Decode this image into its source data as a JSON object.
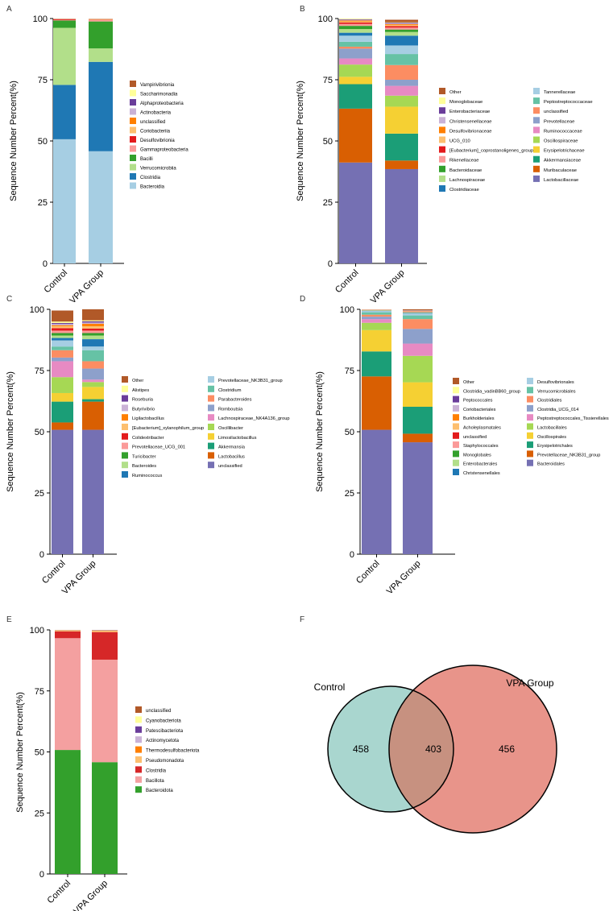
{
  "colors": {
    "Bacteroidia": "#a6cee3",
    "Clostridia": "#1f78b4",
    "Verrucomicrobiia": "#b2df8a",
    "Bacilli": "#33a02c",
    "Gammaproteobacteria": "#fb9a99",
    "Desulfovibrionia": "#e31a1c",
    "Coriobacteriia": "#fdbf6f",
    "unclassified": "#ff7f00",
    "Actinobacteria": "#cab2d6",
    "Alphaproteobacteria": "#6a3d9a",
    "Saccharimonadia": "#ffff99",
    "Vampirivibrionia": "#b15928"
  },
  "panel_labels": [
    "A",
    "B",
    "C",
    "D",
    "E",
    "F"
  ],
  "chart_data": [
    {
      "id": "A",
      "type": "bar",
      "stacked": true,
      "categories": [
        "Control",
        "VPA Group"
      ],
      "ylabel": "Sequence Number Percent(%)",
      "ylim": [
        0,
        100
      ],
      "yticks": [
        0,
        25,
        50,
        75,
        100
      ],
      "series": [
        {
          "name": "Bacteroidia",
          "color": "#a6cee3",
          "values": [
            50.7,
            45.8
          ]
        },
        {
          "name": "Clostridia",
          "color": "#1f78b4",
          "values": [
            22.2,
            36.5
          ]
        },
        {
          "name": "Verrucomicrobiia",
          "color": "#b2df8a",
          "values": [
            23.3,
            5.5
          ]
        },
        {
          "name": "Bacilli",
          "color": "#33a02c",
          "values": [
            3.0,
            11.0
          ]
        },
        {
          "name": "Gammaproteobacteria",
          "color": "#fb9a99",
          "values": [
            0.2,
            0.6
          ]
        },
        {
          "name": "Desulfovibrionia",
          "color": "#e31a1c",
          "values": [
            0.3,
            0.1
          ]
        },
        {
          "name": "Coriobacteriia",
          "color": "#fdbf6f",
          "values": [
            0.1,
            0.2
          ]
        },
        {
          "name": "unclassified",
          "color": "#ff7f00",
          "values": [
            0.1,
            0.1
          ]
        },
        {
          "name": "Actinobacteria",
          "color": "#cab2d6",
          "values": [
            0.05,
            0.1
          ]
        },
        {
          "name": "Alphaproteobacteria",
          "color": "#6a3d9a",
          "values": [
            0.05,
            0.05
          ]
        },
        {
          "name": "Saccharimonadia",
          "color": "#ffff99",
          "values": [
            0.05,
            0.05
          ]
        },
        {
          "name": "Vampirivibrionia",
          "color": "#b15928",
          "values": [
            0.1,
            0.05
          ]
        }
      ],
      "legend": {
        "columns": [
          [
            "Vampirivibrionia",
            "Saccharimonadia",
            "Alphaproteobacteria",
            "Actinobacteria",
            "unclassified",
            "Coriobacteriia",
            "Desulfovibrionia",
            "Gammaproteobacteria",
            "Bacilli",
            "Verrucomicrobiia",
            "Clostridia",
            "Bacteroidia"
          ]
        ]
      }
    },
    {
      "id": "B",
      "type": "bar",
      "stacked": true,
      "categories": [
        "Control",
        "VPA Group"
      ],
      "ylabel": "Sequence Number Percent(%)",
      "ylim": [
        0,
        100
      ],
      "yticks": [
        0,
        25,
        50,
        75,
        100
      ],
      "series": [
        {
          "name": "Lactobacillaceae",
          "color": "#7570b3",
          "values": [
            41.2,
            38.5
          ]
        },
        {
          "name": "Muribaculaceae",
          "color": "#d95f02",
          "values": [
            22.0,
            3.5
          ]
        },
        {
          "name": "Akkermansiaceae",
          "color": "#1b9e77",
          "values": [
            10.0,
            11.0
          ]
        },
        {
          "name": "Erysipelotrichaceae",
          "color": "#f5d033",
          "values": [
            3.0,
            11.0
          ]
        },
        {
          "name": "Oscillospiraceae",
          "color": "#a6d854",
          "values": [
            5.0,
            4.5
          ]
        },
        {
          "name": "Ruminococcaceae",
          "color": "#e78ac3",
          "values": [
            2.5,
            4.0
          ]
        },
        {
          "name": "Prevotellaceae",
          "color": "#8da0cb",
          "values": [
            4.0,
            2.5
          ]
        },
        {
          "name": "unclassified",
          "color": "#fc8d62",
          "values": [
            0.8,
            6.0
          ]
        },
        {
          "name": "Peptostreptococcaceae",
          "color": "#66c2a5",
          "values": [
            2.0,
            4.5
          ]
        },
        {
          "name": "Tannerellaceae",
          "color": "#a6cee3",
          "values": [
            2.5,
            3.5
          ]
        },
        {
          "name": "Clostridiaceae",
          "color": "#1f78b4",
          "values": [
            1.2,
            4.0
          ]
        },
        {
          "name": "Lachnospiraceae",
          "color": "#b2df8a",
          "values": [
            1.5,
            1.5
          ]
        },
        {
          "name": "Bacteroidaceae",
          "color": "#33a02c",
          "values": [
            1.3,
            1.0
          ]
        },
        {
          "name": "Rikenellaceae",
          "color": "#fb9a99",
          "values": [
            0.8,
            0.8
          ]
        },
        {
          "name": "[Eubacterium]_coprostanoligenes_group",
          "color": "#e31a1c",
          "values": [
            0.6,
            0.6
          ]
        },
        {
          "name": "UCG_010",
          "color": "#fdbf6f",
          "values": [
            0.4,
            0.5
          ]
        },
        {
          "name": "Desulfovibrionaceae",
          "color": "#ff7f00",
          "values": [
            0.4,
            0.3
          ]
        },
        {
          "name": "Christensenellaceae",
          "color": "#cab2d6",
          "values": [
            0.3,
            0.3
          ]
        },
        {
          "name": "Enterobacteriaceae",
          "color": "#6a3d9a",
          "values": [
            0.2,
            0.3
          ]
        },
        {
          "name": "Monoglobaceae",
          "color": "#ffff99",
          "values": [
            0.3,
            0.2
          ]
        },
        {
          "name": "Other",
          "color": "#b15928",
          "values": [
            2.0,
            1.0
          ]
        }
      ],
      "legend": {
        "columns": [
          [
            "Other",
            "Monoglobaceae",
            "Enterobacteriaceae",
            "Christensenellaceae",
            "Desulfovibrionaceae",
            "UCG_010",
            "[Eubacterium]_coprostanoligenes_group",
            "Rikenellaceae",
            "Bacteroidaceae",
            "Lachnospiraceae",
            "Clostridiaceae"
          ],
          [
            "Tannerellaceae",
            "Peptostreptococcaceae",
            "unclassified",
            "Prevotellaceae",
            "Ruminococcaceae",
            "Oscillospiraceae",
            "Erysipelotrichaceae",
            "Akkermansiaceae",
            "Muribaculaceae",
            "Lactobacillaceae"
          ]
        ]
      }
    },
    {
      "id": "C",
      "type": "bar",
      "stacked": true,
      "categories": [
        "Control",
        "VPA Group"
      ],
      "ylabel": "Sequence Number Percent(%)",
      "ylim": [
        0,
        100
      ],
      "yticks": [
        0,
        25,
        50,
        75,
        100
      ],
      "series": [
        {
          "name": "unclassified",
          "color": "#7570b3",
          "values": [
            50.8,
            50.8
          ]
        },
        {
          "name": "Lactobacillus",
          "color": "#d95f02",
          "values": [
            3.0,
            11.5
          ]
        },
        {
          "name": "Akkermansia",
          "color": "#1b9e77",
          "values": [
            8.5,
            1.0
          ]
        },
        {
          "name": "Limosilactobacillus",
          "color": "#f5d033",
          "values": [
            3.5,
            5.0
          ]
        },
        {
          "name": "Oscillibacter",
          "color": "#a6d854",
          "values": [
            6.5,
            2.0
          ]
        },
        {
          "name": "Lachnospiraceae_NK4A136_group",
          "color": "#e78ac3",
          "values": [
            6.5,
            1.0
          ]
        },
        {
          "name": "Romboutsia",
          "color": "#8da0cb",
          "values": [
            1.5,
            4.5
          ]
        },
        {
          "name": "Parabacteroides",
          "color": "#fc8d62",
          "values": [
            3.0,
            3.0
          ]
        },
        {
          "name": "Clostridium",
          "color": "#66c2a5",
          "values": [
            1.5,
            4.5
          ]
        },
        {
          "name": "Prevotellaceae_NK3B31_group",
          "color": "#a6cee3",
          "values": [
            2.5,
            1.5
          ]
        },
        {
          "name": "Ruminococcus",
          "color": "#1f78b4",
          "values": [
            1.0,
            3.0
          ]
        },
        {
          "name": "Bacteroides",
          "color": "#b2df8a",
          "values": [
            1.0,
            1.5
          ]
        },
        {
          "name": "Turicibacter",
          "color": "#33a02c",
          "values": [
            1.0,
            1.0
          ]
        },
        {
          "name": "Prevotellaceae_UCG_001",
          "color": "#fb9a99",
          "values": [
            1.0,
            1.0
          ]
        },
        {
          "name": "Colidextribacter",
          "color": "#e31a1c",
          "values": [
            1.0,
            0.8
          ]
        },
        {
          "name": "[Eubacterium]_xylanophilum_group",
          "color": "#fdbf6f",
          "values": [
            0.8,
            1.0
          ]
        },
        {
          "name": "Ligilactobacillus",
          "color": "#ff7f00",
          "values": [
            0.4,
            1.0
          ]
        },
        {
          "name": "Butyrivibrio",
          "color": "#cab2d6",
          "values": [
            0.5,
            0.5
          ]
        },
        {
          "name": "Roseburia",
          "color": "#6a3d9a",
          "values": [
            0.4,
            0.5
          ]
        },
        {
          "name": "Alistipes",
          "color": "#ffff99",
          "values": [
            0.6,
            0.4
          ]
        },
        {
          "name": "Other",
          "color": "#b15928",
          "values": [
            4.5,
            4.5
          ]
        }
      ],
      "legend": {
        "columns": [
          [
            "Other",
            "Alistipes",
            "Roseburia",
            "Butyrivibrio",
            "Ligilactobacillus",
            "[Eubacterium]_xylanophilum_group",
            "Colidextribacter",
            "Prevotellaceae_UCG_001",
            "Turicibacter",
            "Bacteroides",
            "Ruminococcus"
          ],
          [
            "Prevotellaceae_NK3B31_group",
            "Clostridium",
            "Parabacteroides",
            "Romboutsia",
            "Lachnospiraceae_NK4A136_group",
            "Oscillibacter",
            "Limosilactobacillus",
            "Akkermansia",
            "Lactobacillus",
            "unclassified"
          ]
        ]
      }
    },
    {
      "id": "D",
      "type": "bar",
      "stacked": true,
      "categories": [
        "Control",
        "VPA Group"
      ],
      "ylabel": "Sequence Number Percent(%)",
      "ylim": [
        0,
        100
      ],
      "yticks": [
        0,
        25,
        50,
        75,
        100
      ],
      "series": [
        {
          "name": "Bacteroidales",
          "color": "#7570b3",
          "values": [
            50.8,
            45.7
          ]
        },
        {
          "name": "Prevotellaceae_NK3B31_group",
          "color": "#d95f02",
          "values": [
            21.8,
            3.5
          ]
        },
        {
          "name": "Erysipelotrichales",
          "color": "#1b9e77",
          "values": [
            10.2,
            11.0
          ]
        },
        {
          "name": "Oscillospirales",
          "color": "#f5d033",
          "values": [
            8.7,
            10.0
          ]
        },
        {
          "name": "Lactobacillales",
          "color": "#a6d854",
          "values": [
            3.0,
            10.8
          ]
        },
        {
          "name": "Peptostreptococcales_Tissierellales",
          "color": "#e78ac3",
          "values": [
            1.5,
            5.0
          ]
        },
        {
          "name": "Clostridia_UCG_014",
          "color": "#8da0cb",
          "values": [
            1.0,
            6.0
          ]
        },
        {
          "name": "Clostridiales",
          "color": "#fc8d62",
          "values": [
            0.8,
            4.0
          ]
        },
        {
          "name": "Verrucomicrobiales",
          "color": "#66c2a5",
          "values": [
            1.0,
            1.5
          ]
        },
        {
          "name": "Desulfovibrionales",
          "color": "#a6cee3",
          "values": [
            0.5,
            0.8
          ]
        },
        {
          "name": "Christensenellales",
          "color": "#1f78b4",
          "values": [
            0.1,
            0.2
          ]
        },
        {
          "name": "Enterobacterales",
          "color": "#b2df8a",
          "values": [
            0.1,
            0.2
          ]
        },
        {
          "name": "Monoglobales",
          "color": "#33a02c",
          "values": [
            0.1,
            0.1
          ]
        },
        {
          "name": "Staphylococcales",
          "color": "#fb9a99",
          "values": [
            0.1,
            0.2
          ]
        },
        {
          "name": "unclassified",
          "color": "#e31a1c",
          "values": [
            0.05,
            0.1
          ]
        },
        {
          "name": "Acholeplasmatales",
          "color": "#fdbf6f",
          "values": [
            0.05,
            0.1
          ]
        },
        {
          "name": "Burkholderiales",
          "color": "#ff7f00",
          "values": [
            0.05,
            0.1
          ]
        },
        {
          "name": "Coriobacteriales",
          "color": "#cab2d6",
          "values": [
            0.05,
            0.1
          ]
        },
        {
          "name": "Peptococcales",
          "color": "#6a3d9a",
          "values": [
            0.05,
            0.1
          ]
        },
        {
          "name": "Clostridia_vadinBB60_group",
          "color": "#ffff99",
          "values": [
            0.05,
            0.1
          ]
        },
        {
          "name": "Other",
          "color": "#b15928",
          "values": [
            0.2,
            0.5
          ]
        }
      ],
      "legend": {
        "columns": [
          [
            "Other",
            "Clostridia_vadinBB60_group",
            "Peptococcales",
            "Coriobacteriales",
            "Burkholderiales",
            "Acholeplasmatales",
            "unclassified",
            "Staphylococcales",
            "Monoglobales",
            "Enterobacterales",
            "Christensenellales"
          ],
          [
            "Desulfovibrionales",
            "Verrucomicrobiales",
            "Clostridiales",
            "Clostridia_UCG_014",
            "Peptostreptococcales_Tissierellales",
            "Lactobacillales",
            "Oscillospirales",
            "Erysipelotrichales",
            "Prevotellaceae_NK3B31_group",
            "Bacteroidales"
          ]
        ]
      }
    },
    {
      "id": "E",
      "type": "bar",
      "stacked": true,
      "categories": [
        "Control",
        "VPA Group"
      ],
      "ylabel": "Sequence Number Percent(%)",
      "ylim": [
        0,
        100
      ],
      "yticks": [
        0,
        25,
        50,
        75,
        100
      ],
      "series": [
        {
          "name": "Bacteroidota",
          "color": "#33a02c",
          "values": [
            50.8,
            45.8
          ]
        },
        {
          "name": "Bacillota",
          "color": "#f4a0a0",
          "values": [
            45.8,
            42.0
          ]
        },
        {
          "name": "Clostridia",
          "color": "#d62728",
          "values": [
            2.8,
            11.3
          ]
        },
        {
          "name": "Pseudomonadota",
          "color": "#fdbf6f",
          "values": [
            0.3,
            0.5
          ]
        },
        {
          "name": "Thermodesulfobacteriota",
          "color": "#ff7f00",
          "values": [
            0.1,
            0.1
          ]
        },
        {
          "name": "Actinomycetota",
          "color": "#cab2d6",
          "values": [
            0.05,
            0.1
          ]
        },
        {
          "name": "Patescibacteriota",
          "color": "#6a3d9a",
          "values": [
            0.05,
            0.05
          ]
        },
        {
          "name": "Cyanobacteriota",
          "color": "#ffff99",
          "values": [
            0.05,
            0.05
          ]
        },
        {
          "name": "unclassified",
          "color": "#b15928",
          "values": [
            0.05,
            0.1
          ]
        }
      ],
      "legend": {
        "columns": [
          [
            "unclassified",
            "Cyanobacteriota",
            "Patescibacteriota",
            "Actinomycetota",
            "Thermodesulfobacteriota",
            "Pseudomonadota",
            "Clostridia",
            "Bacillota",
            "Bacteroidota"
          ]
        ]
      }
    },
    {
      "id": "F",
      "type": "venn",
      "sets": [
        {
          "name": "Control",
          "unique": 458,
          "color": "#a9d6cf"
        },
        {
          "name": "VPA Group",
          "unique": 456,
          "color": "#e8948a"
        }
      ],
      "shared": 403,
      "overlap_color": "#c79180"
    }
  ]
}
